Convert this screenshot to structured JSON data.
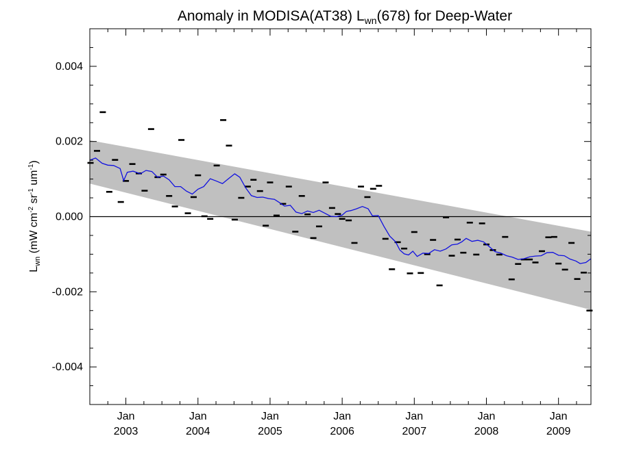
{
  "chart_data": {
    "type": "scatter",
    "title": {
      "prefix": "Anomaly in MODISA(AT38) L",
      "sub": "wn",
      "suffix": "(678) for Deep-Water"
    },
    "ylabel": {
      "main": "L",
      "main_sub": "wn",
      "unit_open": " (mW cm",
      "unit_sup1": "-2",
      "unit_mid": " sr",
      "unit_sup2": "-1",
      "unit_mid2": " um",
      "unit_sup3": "-1",
      "unit_close": ")"
    },
    "xlim": [
      2002.5,
      2009.45
    ],
    "ylim": [
      -0.005,
      0.005
    ],
    "y_ticks": [
      -0.004,
      -0.002,
      0.0,
      0.002,
      0.004
    ],
    "y_tick_labels": [
      "-0.004",
      "-0.002",
      "0.000",
      "0.002",
      "0.004"
    ],
    "x_ticks": [
      {
        "x": 2003.0,
        "month": "Jan",
        "year": "2003"
      },
      {
        "x": 2004.0,
        "month": "Jan",
        "year": "2004"
      },
      {
        "x": 2005.0,
        "month": "Jan",
        "year": "2005"
      },
      {
        "x": 2006.0,
        "month": "Jan",
        "year": "2006"
      },
      {
        "x": 2007.0,
        "month": "Jan",
        "year": "2007"
      },
      {
        "x": 2008.0,
        "month": "Jan",
        "year": "2008"
      },
      {
        "x": 2009.0,
        "month": "Jan",
        "year": "2009"
      }
    ],
    "zero_line": 0.0,
    "band": {
      "color": "#c0c0c0",
      "upper": [
        [
          2002.5,
          0.00203
        ],
        [
          2009.45,
          -0.0004
        ]
      ],
      "lower": [
        [
          2002.5,
          0.00088
        ],
        [
          2009.45,
          -0.00248
        ]
      ]
    },
    "series": [
      {
        "style": "markers",
        "color": "#000000",
        "points": [
          [
            2002.51,
            0.00143
          ],
          [
            2002.6,
            0.00175
          ],
          [
            2002.68,
            0.00278
          ],
          [
            2002.77,
            0.00066
          ],
          [
            2002.85,
            0.00151
          ],
          [
            2002.93,
            0.00039
          ],
          [
            2003.0,
            0.00095
          ],
          [
            2003.09,
            0.0014
          ],
          [
            2003.18,
            0.00115
          ],
          [
            2003.26,
            0.00069
          ],
          [
            2003.35,
            0.00233
          ],
          [
            2003.44,
            0.00105
          ],
          [
            2003.52,
            0.00112
          ],
          [
            2003.6,
            0.00055
          ],
          [
            2003.68,
            0.00027
          ],
          [
            2003.77,
            0.00204
          ],
          [
            2003.86,
            9e-05
          ],
          [
            2003.94,
            0.00052
          ],
          [
            2004.0,
            0.0011
          ],
          [
            2004.09,
            1e-05
          ],
          [
            2004.17,
            -6e-05
          ],
          [
            2004.26,
            0.00136
          ],
          [
            2004.35,
            0.00257
          ],
          [
            2004.43,
            0.00189
          ],
          [
            2004.51,
            -8e-05
          ],
          [
            2004.6,
            0.0005
          ],
          [
            2004.69,
            0.0008
          ],
          [
            2004.77,
            0.00098
          ],
          [
            2004.86,
            0.00068
          ],
          [
            2004.94,
            -0.00024
          ],
          [
            2005.0,
            0.00091
          ],
          [
            2005.09,
            3e-05
          ],
          [
            2005.18,
            0.00034
          ],
          [
            2005.26,
            0.0008
          ],
          [
            2005.35,
            -0.0004
          ],
          [
            2005.44,
            0.00055
          ],
          [
            2005.52,
            6e-05
          ],
          [
            2005.6,
            -0.00057
          ],
          [
            2005.68,
            -0.00026
          ],
          [
            2005.77,
            0.00091
          ],
          [
            2005.86,
            0.00023
          ],
          [
            2005.94,
            7e-05
          ],
          [
            2006.0,
            -6e-05
          ],
          [
            2006.09,
            -0.0001
          ],
          [
            2006.17,
            -0.0007
          ],
          [
            2006.26,
            0.0008
          ],
          [
            2006.35,
            0.00052
          ],
          [
            2006.43,
            0.00074
          ],
          [
            2006.51,
            0.00082
          ],
          [
            2006.6,
            -0.00059
          ],
          [
            2006.69,
            -0.0014
          ],
          [
            2006.77,
            -0.00068
          ],
          [
            2006.86,
            -0.00085
          ],
          [
            2006.94,
            -0.00151
          ],
          [
            2007.0,
            -0.00041
          ],
          [
            2007.09,
            -0.0015
          ],
          [
            2007.18,
            -0.001
          ],
          [
            2007.26,
            -0.00062
          ],
          [
            2007.35,
            -0.00183
          ],
          [
            2007.44,
            -2e-05
          ],
          [
            2007.52,
            -0.00104
          ],
          [
            2007.6,
            -0.00061
          ],
          [
            2007.68,
            -0.00096
          ],
          [
            2007.77,
            -0.00016
          ],
          [
            2007.86,
            -0.00101
          ],
          [
            2007.94,
            -0.00018
          ],
          [
            2008.0,
            -0.00074
          ],
          [
            2008.09,
            -0.00089
          ],
          [
            2008.18,
            -0.00101
          ],
          [
            2008.26,
            -0.00054
          ],
          [
            2008.35,
            -0.00167
          ],
          [
            2008.44,
            -0.00126
          ],
          [
            2008.52,
            -0.00114
          ],
          [
            2008.6,
            -0.00114
          ],
          [
            2008.68,
            -0.00122
          ],
          [
            2008.77,
            -0.00092
          ],
          [
            2008.86,
            -0.00055
          ],
          [
            2008.94,
            -0.00054
          ],
          [
            2009.0,
            -0.00125
          ],
          [
            2009.09,
            -0.00141
          ],
          [
            2009.18,
            -0.0007
          ],
          [
            2009.26,
            -0.00166
          ],
          [
            2009.35,
            -0.00149
          ],
          [
            2009.43,
            -0.0025
          ]
        ]
      },
      {
        "style": "line",
        "color": "#1010e0",
        "points": [
          [
            2002.5,
            0.0015
          ],
          [
            2002.58,
            0.00156
          ],
          [
            2002.67,
            0.00142
          ],
          [
            2002.75,
            0.00137
          ],
          [
            2002.83,
            0.00136
          ],
          [
            2002.92,
            0.00128
          ],
          [
            2002.97,
            0.00096
          ],
          [
            2003.02,
            0.00118
          ],
          [
            2003.1,
            0.00121
          ],
          [
            2003.2,
            0.00114
          ],
          [
            2003.28,
            0.00123
          ],
          [
            2003.36,
            0.0012
          ],
          [
            2003.44,
            0.00105
          ],
          [
            2003.52,
            0.00108
          ],
          [
            2003.6,
            0.00098
          ],
          [
            2003.68,
            0.0008
          ],
          [
            2003.76,
            0.0008
          ],
          [
            2003.84,
            0.00068
          ],
          [
            2003.92,
            0.0006
          ],
          [
            2004.0,
            0.00073
          ],
          [
            2004.08,
            0.0008
          ],
          [
            2004.17,
            0.00101
          ],
          [
            2004.25,
            0.00095
          ],
          [
            2004.34,
            0.00088
          ],
          [
            2004.43,
            0.00102
          ],
          [
            2004.51,
            0.00114
          ],
          [
            2004.58,
            0.00105
          ],
          [
            2004.66,
            0.00077
          ],
          [
            2004.74,
            0.00056
          ],
          [
            2004.82,
            0.00051
          ],
          [
            2004.9,
            0.00052
          ],
          [
            2004.98,
            0.00048
          ],
          [
            2005.06,
            0.00046
          ],
          [
            2005.14,
            0.00036
          ],
          [
            2005.2,
            0.00028
          ],
          [
            2005.28,
            0.0003
          ],
          [
            2005.36,
            0.00012
          ],
          [
            2005.44,
            8e-05
          ],
          [
            2005.52,
            0.00015
          ],
          [
            2005.6,
            0.00011
          ],
          [
            2005.68,
            0.00017
          ],
          [
            2005.76,
            9e-05
          ],
          [
            2005.84,
            1e-05
          ],
          [
            2005.92,
            0.0
          ],
          [
            2006.0,
            4e-05
          ],
          [
            2006.06,
            0.00014
          ],
          [
            2006.12,
            0.00016
          ],
          [
            2006.2,
            0.00021
          ],
          [
            2006.28,
            0.00027
          ],
          [
            2006.36,
            0.00021
          ],
          [
            2006.42,
            2e-05
          ],
          [
            2006.5,
            3e-05
          ],
          [
            2006.58,
            -0.00026
          ],
          [
            2006.66,
            -0.00052
          ],
          [
            2006.74,
            -0.00067
          ],
          [
            2006.8,
            -0.00089
          ],
          [
            2006.86,
            -0.00099
          ],
          [
            2006.92,
            -0.00102
          ],
          [
            2006.98,
            -0.00092
          ],
          [
            2007.04,
            -0.00106
          ],
          [
            2007.12,
            -0.00097
          ],
          [
            2007.2,
            -0.00098
          ],
          [
            2007.28,
            -0.00088
          ],
          [
            2007.36,
            -0.00092
          ],
          [
            2007.44,
            -0.00086
          ],
          [
            2007.52,
            -0.00075
          ],
          [
            2007.6,
            -0.00073
          ],
          [
            2007.66,
            -0.00067
          ],
          [
            2007.72,
            -0.00058
          ],
          [
            2007.8,
            -0.00066
          ],
          [
            2007.88,
            -0.00063
          ],
          [
            2007.96,
            -0.00067
          ],
          [
            2008.04,
            -0.0008
          ],
          [
            2008.12,
            -0.00093
          ],
          [
            2008.2,
            -0.00097
          ],
          [
            2008.28,
            -0.00104
          ],
          [
            2008.36,
            -0.00108
          ],
          [
            2008.44,
            -0.00114
          ],
          [
            2008.52,
            -0.00112
          ],
          [
            2008.6,
            -0.00107
          ],
          [
            2008.68,
            -0.00105
          ],
          [
            2008.76,
            -0.00104
          ],
          [
            2008.84,
            -0.00096
          ],
          [
            2008.92,
            -0.00095
          ],
          [
            2009.0,
            -0.00103
          ],
          [
            2009.08,
            -0.00104
          ],
          [
            2009.16,
            -0.00113
          ],
          [
            2009.24,
            -0.00118
          ],
          [
            2009.3,
            -0.00125
          ],
          [
            2009.38,
            -0.00122
          ],
          [
            2009.45,
            -0.00112
          ]
        ]
      }
    ]
  }
}
